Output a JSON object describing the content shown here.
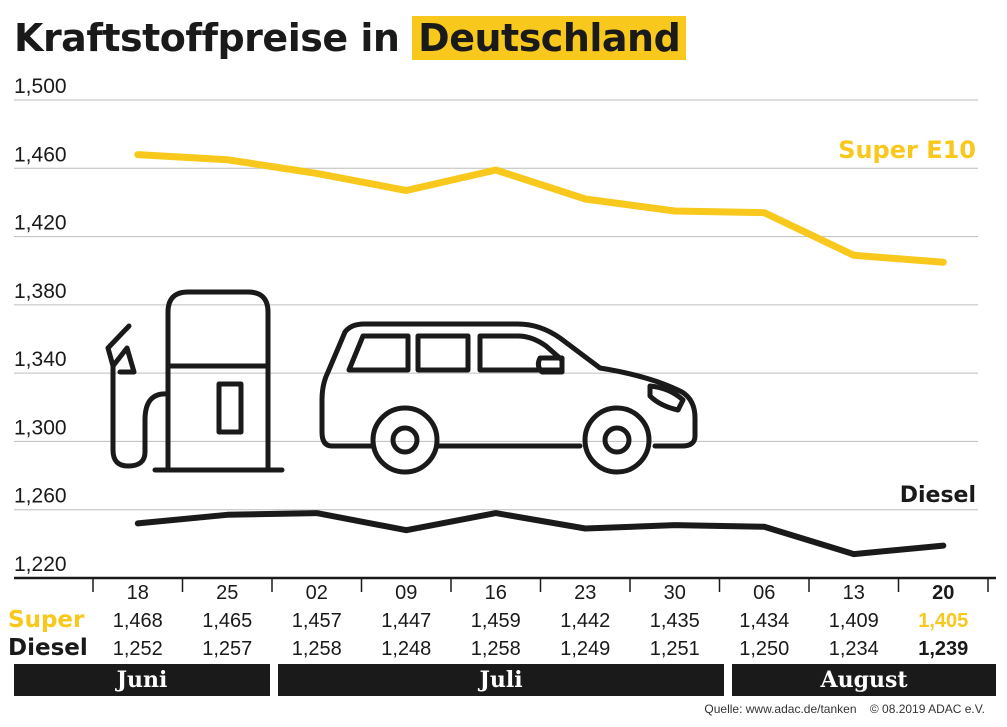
{
  "title": {
    "plain": "Kraftstoffpreise in",
    "highlight": "Deutschland"
  },
  "colors": {
    "super": "#f8c81c",
    "diesel": "#1a1a1a",
    "grid": "#bdbdbd",
    "month_bar": "#1a1a1a",
    "title_highlight": "#f8c81c"
  },
  "chart_data": {
    "type": "line",
    "ylim": [
      1.22,
      1.5
    ],
    "yticks": [
      "1,500",
      "1,460",
      "1,420",
      "1,380",
      "1,340",
      "1,300",
      "1,260",
      "1,220"
    ],
    "ytick_values": [
      1.5,
      1.46,
      1.42,
      1.38,
      1.34,
      1.3,
      1.26,
      1.22
    ],
    "grid": true,
    "x": [
      "18",
      "25",
      "02",
      "09",
      "16",
      "23",
      "30",
      "06",
      "13",
      "20"
    ],
    "highlight_index": 9,
    "series": [
      {
        "name": "Super E10",
        "table_label": "Super",
        "values": [
          1.468,
          1.465,
          1.457,
          1.447,
          1.459,
          1.442,
          1.435,
          1.434,
          1.409,
          1.405
        ],
        "labels": [
          "1,468",
          "1,465",
          "1,457",
          "1,447",
          "1,459",
          "1,442",
          "1,435",
          "1,434",
          "1,409",
          "1,405"
        ]
      },
      {
        "name": "Diesel",
        "table_label": "Diesel",
        "values": [
          1.252,
          1.257,
          1.258,
          1.248,
          1.258,
          1.249,
          1.251,
          1.25,
          1.234,
          1.239
        ],
        "labels": [
          "1,252",
          "1,257",
          "1,258",
          "1,248",
          "1,258",
          "1,249",
          "1,251",
          "1,250",
          "1,234",
          "1,239"
        ]
      }
    ],
    "months": [
      {
        "label": "Juni",
        "from": 0,
        "to": 1
      },
      {
        "label": "Juli",
        "from": 2,
        "to": 6
      },
      {
        "label": "August",
        "from": 7,
        "to": 9
      }
    ]
  },
  "icons": [
    "fuel-pump-icon",
    "car-icon"
  ],
  "footer": {
    "source": "Quelle: www.adac.de/tanken",
    "copyright": "© 08.2019  ADAC e.V."
  }
}
